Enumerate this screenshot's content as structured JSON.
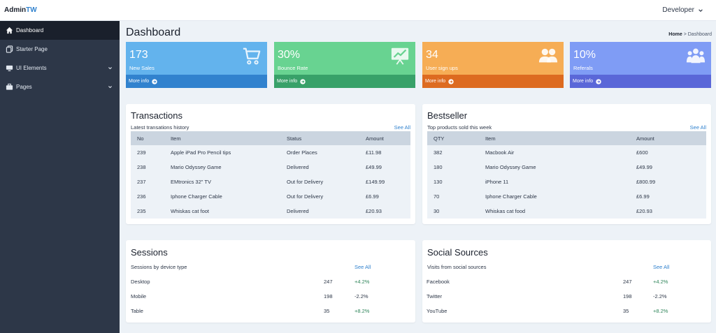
{
  "header": {
    "brand_main": "Admin",
    "brand_accent": "TW",
    "user": "Developer"
  },
  "sidebar": {
    "items": [
      {
        "label": "Dashboard",
        "active": true,
        "icon": "home-icon"
      },
      {
        "label": "Starter Page",
        "icon": "pages-icon"
      },
      {
        "label": "UI Elements",
        "icon": "monitor-icon",
        "expandable": true
      },
      {
        "label": "Pages",
        "icon": "briefcase-icon",
        "expandable": true
      }
    ]
  },
  "page": {
    "title": "Dashboard",
    "breadcrumb_home": "Home",
    "breadcrumb_sep": ">",
    "breadcrumb_current": "Dashboard"
  },
  "stats": [
    {
      "value": "173",
      "label": "New Sales",
      "link": "More info",
      "color": "#63b3ed",
      "foot_color": "#3182ce",
      "icon": "cart-icon"
    },
    {
      "value": "30%",
      "label": "Bounce Rate",
      "link": "More info",
      "color": "#68d391",
      "foot_color": "#38a169",
      "icon": "chart-board-icon"
    },
    {
      "value": "34",
      "label": "User sign ups",
      "link": "More info",
      "color": "#f6ad55",
      "foot_color": "#dd6b20",
      "icon": "users-icon"
    },
    {
      "value": "10%",
      "label": "Referals",
      "link": "More info",
      "color": "#7f9cf5",
      "foot_color": "#5a67d8",
      "icon": "group-icon"
    }
  ],
  "transactions": {
    "title": "Transactions",
    "subtitle": "Latest transations history",
    "see_all": "See All",
    "columns": [
      "No",
      "Item",
      "Status",
      "Amount"
    ],
    "rows": [
      [
        "239",
        "Apple iPad Pro Pencil tips",
        "Order Places",
        "£11.98"
      ],
      [
        "238",
        "Mario Odyssey Game",
        "Delivered",
        "£49.99"
      ],
      [
        "237",
        "EMtronics 32\" TV",
        "Out for Delivery",
        "£149.99"
      ],
      [
        "236",
        "Iphone Charger Cable",
        "Out for Delivery",
        "£6.99"
      ],
      [
        "235",
        "Whiskas cat foot",
        "Delivered",
        "£20.93"
      ]
    ]
  },
  "bestseller": {
    "title": "Bestseller",
    "subtitle": "Top products sold this week",
    "see_all": "See All",
    "columns": [
      "QTY",
      "Item",
      "Amount"
    ],
    "rows": [
      [
        "382",
        "Macbook Air",
        "£600"
      ],
      [
        "180",
        "Mario Odyssey Game",
        "£49.99"
      ],
      [
        "130",
        "iPhone 11",
        "£800.99"
      ],
      [
        "70",
        "Iphone Charger Cable",
        "£6.99"
      ],
      [
        "30",
        "Whiskas cat food",
        "£20.93"
      ]
    ]
  },
  "sessions": {
    "title": "Sessions",
    "subtitle": "Sessions by device type",
    "see_all": "See All",
    "rows": [
      {
        "name": "Desktop",
        "count": "247",
        "change": "+4.2%"
      },
      {
        "name": "Mobile",
        "count": "198",
        "change": "-2.2%"
      },
      {
        "name": "Table",
        "count": "35",
        "change": "+8.2%"
      }
    ]
  },
  "social": {
    "title": "Social Sources",
    "subtitle": "Visits from social sources",
    "see_all": "See All",
    "rows": [
      {
        "name": "Facebook",
        "count": "247",
        "change": "+4.2%"
      },
      {
        "name": "Twitter",
        "count": "198",
        "change": "-2.2%"
      },
      {
        "name": "YouTube",
        "count": "35",
        "change": "+8.2%"
      }
    ]
  },
  "colors": {
    "positive": "#2f855a",
    "negative": "#2d3748"
  }
}
